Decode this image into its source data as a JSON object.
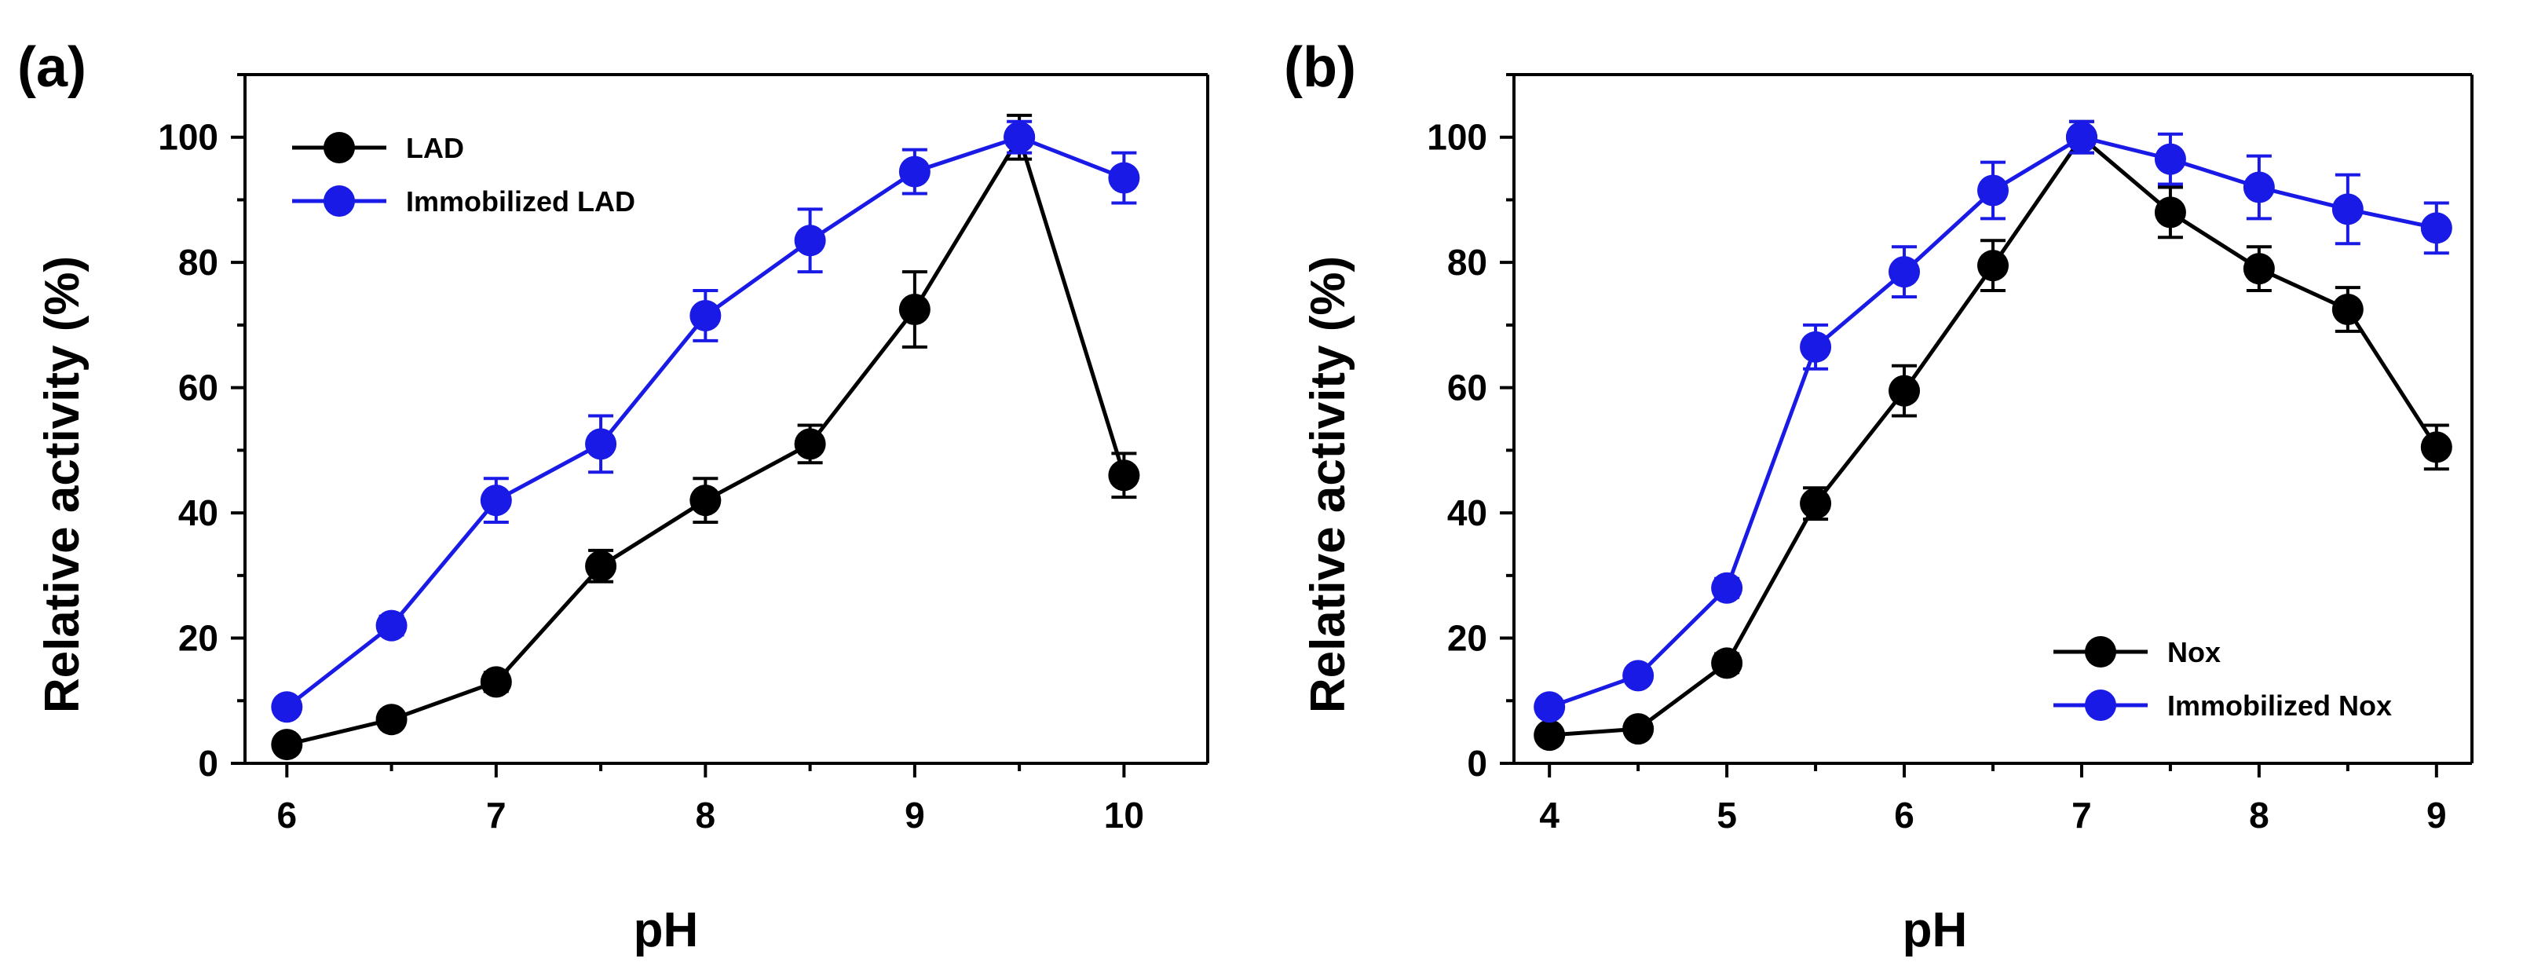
{
  "chart_data": [
    {
      "panel_label": "(a)",
      "type": "line",
      "xlabel": "pH",
      "ylabel": "Relative activity (%)",
      "xlim": [
        5.8,
        10.4
      ],
      "ylim": [
        0,
        110
      ],
      "x_ticks": [
        6,
        7,
        8,
        9,
        10
      ],
      "y_ticks": [
        0,
        20,
        40,
        60,
        80,
        100
      ],
      "x_tick_labels": [
        "6",
        "7",
        "8",
        "9",
        "10"
      ],
      "y_tick_labels": [
        "0",
        "20",
        "40",
        "60",
        "80",
        "100"
      ],
      "legend_position": "top-left",
      "series": [
        {
          "name": "LAD",
          "color": "#000000",
          "x": [
            6,
            6.5,
            7,
            7.5,
            8,
            8.5,
            9,
            9.5,
            10
          ],
          "y": [
            3,
            7,
            13,
            31.5,
            42,
            51,
            72.5,
            100,
            46
          ],
          "err": [
            1,
            1,
            1.5,
            2.5,
            3.5,
            3,
            6,
            3.5,
            3.5
          ]
        },
        {
          "name": "Immobilized LAD",
          "color": "#1a1ae6",
          "x": [
            6,
            6.5,
            7,
            7.5,
            8,
            8.5,
            9,
            9.5,
            10
          ],
          "y": [
            9,
            22,
            42,
            51,
            71.5,
            83.5,
            94.5,
            100,
            93.5
          ],
          "err": [
            1,
            1.5,
            3.5,
            4.5,
            4,
            5,
            3.5,
            2.5,
            4
          ]
        }
      ]
    },
    {
      "panel_label": "(b)",
      "type": "line",
      "xlabel": "pH",
      "ylabel": "Relative activity (%)",
      "xlim": [
        3.8,
        9.2
      ],
      "ylim": [
        0,
        110
      ],
      "x_ticks": [
        4,
        5,
        6,
        7,
        8,
        9
      ],
      "y_ticks": [
        0,
        20,
        40,
        60,
        80,
        100
      ],
      "x_tick_labels": [
        "4",
        "5",
        "6",
        "7",
        "8",
        "9"
      ],
      "y_tick_labels": [
        "0",
        "20",
        "40",
        "60",
        "80",
        "100"
      ],
      "legend_position": "bottom-right",
      "series": [
        {
          "name": "Nox",
          "color": "#000000",
          "x": [
            4,
            4.5,
            5,
            5.5,
            6,
            6.5,
            7,
            7.5,
            8,
            8.5,
            9
          ],
          "y": [
            4.5,
            5.5,
            16,
            41.5,
            59.5,
            79.5,
            100,
            88,
            79,
            72.5,
            50.5
          ],
          "err": [
            1,
            1,
            1.5,
            2.5,
            4,
            4,
            2.5,
            4,
            3.5,
            3.5,
            3.5
          ]
        },
        {
          "name": "Immobilized Nox",
          "color": "#1a1ae6",
          "x": [
            4,
            4.5,
            5,
            5.5,
            6,
            6.5,
            7,
            7.5,
            8,
            8.5,
            9
          ],
          "y": [
            9,
            14,
            28,
            66.5,
            78.5,
            91.5,
            100,
            96.5,
            92,
            88.5,
            85.5
          ],
          "err": [
            1,
            1,
            1.5,
            3.5,
            4,
            4.5,
            2.5,
            4,
            5,
            5.5,
            4
          ]
        }
      ]
    }
  ]
}
